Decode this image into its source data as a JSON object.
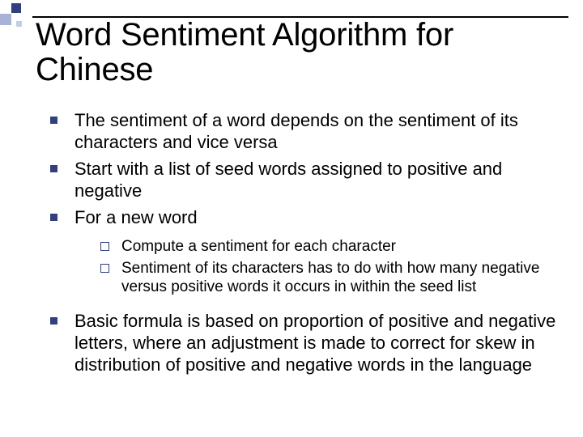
{
  "colors": {
    "accent_dark": "#324080",
    "accent_light": "#a7b2d6",
    "accent_lighter": "#c4cde4",
    "rule": "#000000",
    "text": "#000000",
    "background": "#ffffff"
  },
  "title": {
    "text": "Word Sentiment Algorithm for Chinese",
    "fontsize": 40
  },
  "bullets": [
    {
      "text": "The sentiment of a word depends on the sentiment of its characters and vice versa",
      "level": 1
    },
    {
      "text": "Start with a list of seed words assigned to positive and negative",
      "level": 1
    },
    {
      "text": "For a new word",
      "level": 1,
      "children": [
        {
          "text": "Compute a sentiment for each character",
          "level": 2
        },
        {
          "text": "Sentiment of its characters has to do with how many negative versus positive words it occurs in within the seed list",
          "level": 2
        }
      ]
    },
    {
      "text": "Basic formula is based on proportion of positive and negative letters, where an adjustment is made to correct for skew in distribution of positive and negative words in the language",
      "level": 1
    }
  ],
  "typography": {
    "l1_fontsize": 22,
    "l2_fontsize": 19,
    "font_family": "Arial"
  },
  "bullet_markers": {
    "l1": {
      "shape": "filled-square",
      "size": 9,
      "color": "#324080"
    },
    "l2": {
      "shape": "hollow-square",
      "size": 9,
      "border_color": "#324080"
    }
  }
}
